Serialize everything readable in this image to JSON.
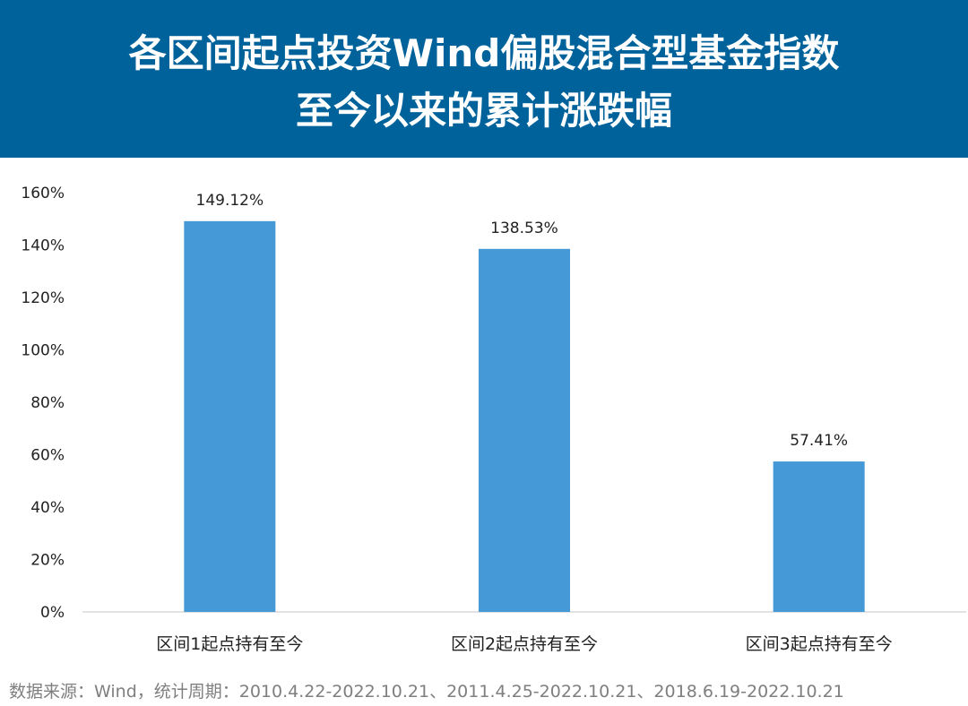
{
  "header": {
    "title_line1": "各区间起点投资Wind偏股混合型基金指数",
    "title_line2": "至今以来的累计涨跌幅"
  },
  "colors": {
    "header_bg": "#00629b",
    "bar": "#4499d6",
    "axis_text": "#222222",
    "source_text": "#7f7f7f"
  },
  "chart_data": {
    "type": "bar",
    "categories": [
      "区间1起点持有至今",
      "区间2起点持有至今",
      "区间3起点持有至今"
    ],
    "values": [
      149.12,
      138.53,
      57.41
    ],
    "value_labels": [
      "149.12%",
      "138.53%",
      "57.41%"
    ],
    "ylim": [
      0,
      160
    ],
    "yticks": [
      0,
      20,
      40,
      60,
      80,
      100,
      120,
      140,
      160
    ],
    "ytick_labels": [
      "0%",
      "20%",
      "40%",
      "60%",
      "80%",
      "100%",
      "120%",
      "140%",
      "160%"
    ],
    "grid": false,
    "legend": "none"
  },
  "footer": {
    "source": "数据来源：Wind，统计周期：2010.4.22-2022.10.21、2011.4.25-2022.10.21、2018.6.19-2022.10.21"
  }
}
